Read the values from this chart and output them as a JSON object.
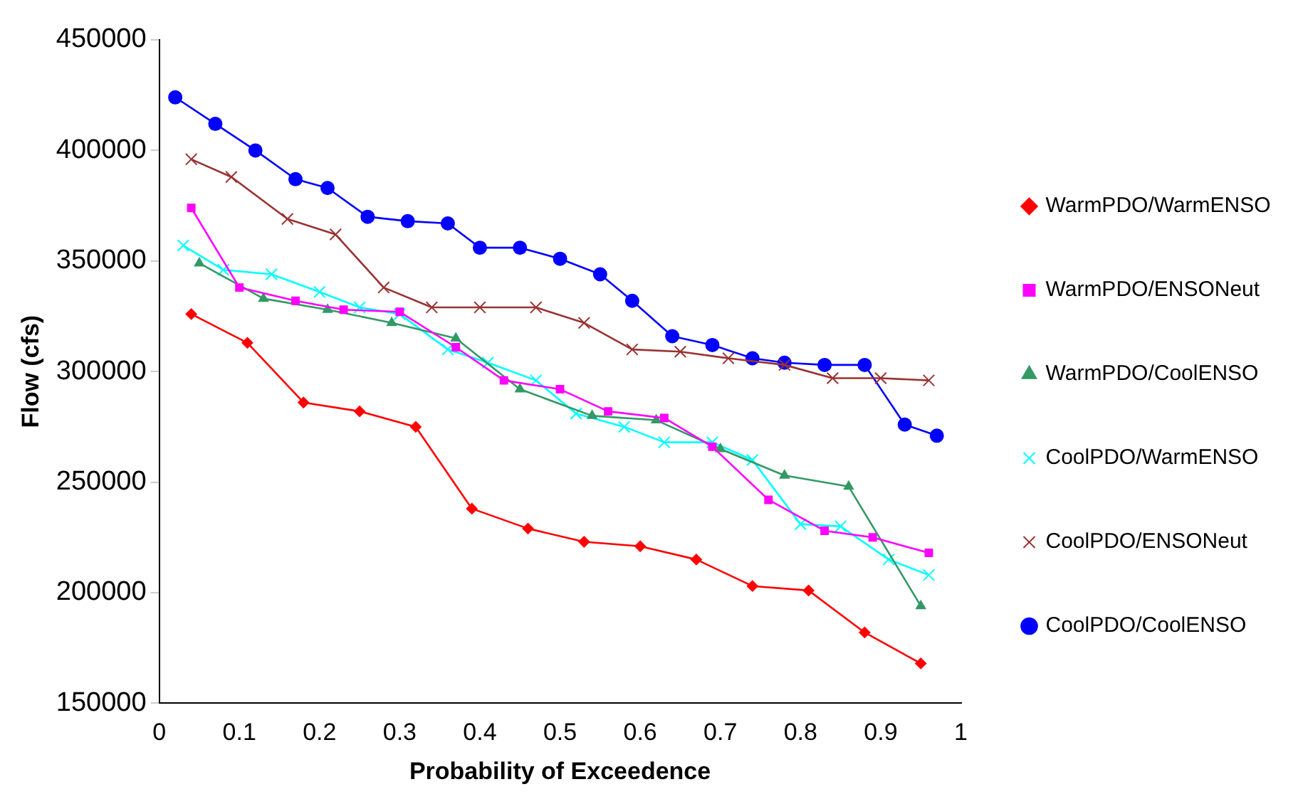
{
  "chart_data": {
    "type": "line",
    "xlabel": "Probability of Exceedence",
    "ylabel": "Flow (cfs)",
    "xlim": [
      0,
      1
    ],
    "xticks": [
      0,
      0.1,
      0.2,
      0.3,
      0.4,
      0.5,
      0.6,
      0.7,
      0.8,
      0.9,
      1
    ],
    "ylim": [
      150000,
      450000
    ],
    "yticks": [
      150000,
      200000,
      250000,
      300000,
      350000,
      400000,
      450000
    ],
    "grid": false,
    "legend": "right",
    "line_style": "solid",
    "series": [
      {
        "name": "WarmPDO/WarmENSO",
        "color": "#ff0000",
        "marker": "diamond",
        "x": [
          0.04,
          0.11,
          0.18,
          0.25,
          0.32,
          0.39,
          0.46,
          0.53,
          0.6,
          0.67,
          0.74,
          0.81,
          0.88,
          0.95
        ],
        "values": [
          326000,
          313000,
          286000,
          282000,
          275000,
          238000,
          229000,
          223000,
          221000,
          215000,
          203000,
          201000,
          182000,
          168000
        ]
      },
      {
        "name": "WarmPDO/ENSONeut",
        "color": "#ff00ff",
        "marker": "square",
        "x": [
          0.04,
          0.1,
          0.17,
          0.23,
          0.3,
          0.37,
          0.43,
          0.5,
          0.56,
          0.63,
          0.69,
          0.76,
          0.83,
          0.89,
          0.96
        ],
        "values": [
          374000,
          338000,
          332000,
          328000,
          327000,
          311000,
          296000,
          292000,
          282000,
          279000,
          266000,
          242000,
          228000,
          225000,
          218000
        ]
      },
      {
        "name": "WarmPDO/CoolENSO",
        "color": "#339966",
        "marker": "triangle",
        "x": [
          0.05,
          0.13,
          0.21,
          0.29,
          0.37,
          0.45,
          0.54,
          0.62,
          0.7,
          0.78,
          0.86,
          0.95
        ],
        "values": [
          349000,
          333000,
          328000,
          322000,
          315000,
          292000,
          280000,
          278000,
          265000,
          253000,
          248000,
          194000
        ]
      },
      {
        "name": "CoolPDO/WarmENSO",
        "color": "#00ffff",
        "marker": "cross",
        "x": [
          0.03,
          0.08,
          0.14,
          0.2,
          0.25,
          0.3,
          0.36,
          0.41,
          0.47,
          0.52,
          0.58,
          0.63,
          0.69,
          0.74,
          0.8,
          0.85,
          0.91,
          0.96
        ],
        "values": [
          357000,
          346000,
          344000,
          336000,
          329000,
          326000,
          310000,
          304000,
          296000,
          281000,
          275000,
          268000,
          268000,
          260000,
          231000,
          230000,
          215000,
          208000
        ]
      },
      {
        "name": "CoolPDO/ENSONeut",
        "color": "#993333",
        "marker": "cross",
        "x": [
          0.04,
          0.09,
          0.16,
          0.22,
          0.28,
          0.34,
          0.4,
          0.47,
          0.53,
          0.59,
          0.65,
          0.71,
          0.78,
          0.84,
          0.9,
          0.96
        ],
        "values": [
          396000,
          388000,
          369000,
          362000,
          338000,
          329000,
          329000,
          329000,
          322000,
          310000,
          309000,
          306000,
          303000,
          297000,
          297000,
          296000
        ]
      },
      {
        "name": "CoolPDO/CoolENSO",
        "color": "#0000ff",
        "marker": "circle",
        "x": [
          0.02,
          0.07,
          0.12,
          0.17,
          0.21,
          0.26,
          0.31,
          0.36,
          0.4,
          0.45,
          0.5,
          0.55,
          0.59,
          0.64,
          0.69,
          0.74,
          0.78,
          0.83,
          0.88,
          0.93,
          0.97
        ],
        "values": [
          424000,
          412000,
          400000,
          387000,
          383000,
          370000,
          368000,
          367000,
          356000,
          356000,
          351000,
          344000,
          332000,
          316000,
          312000,
          306000,
          304000,
          303000,
          303000,
          276000,
          271000
        ]
      }
    ]
  }
}
